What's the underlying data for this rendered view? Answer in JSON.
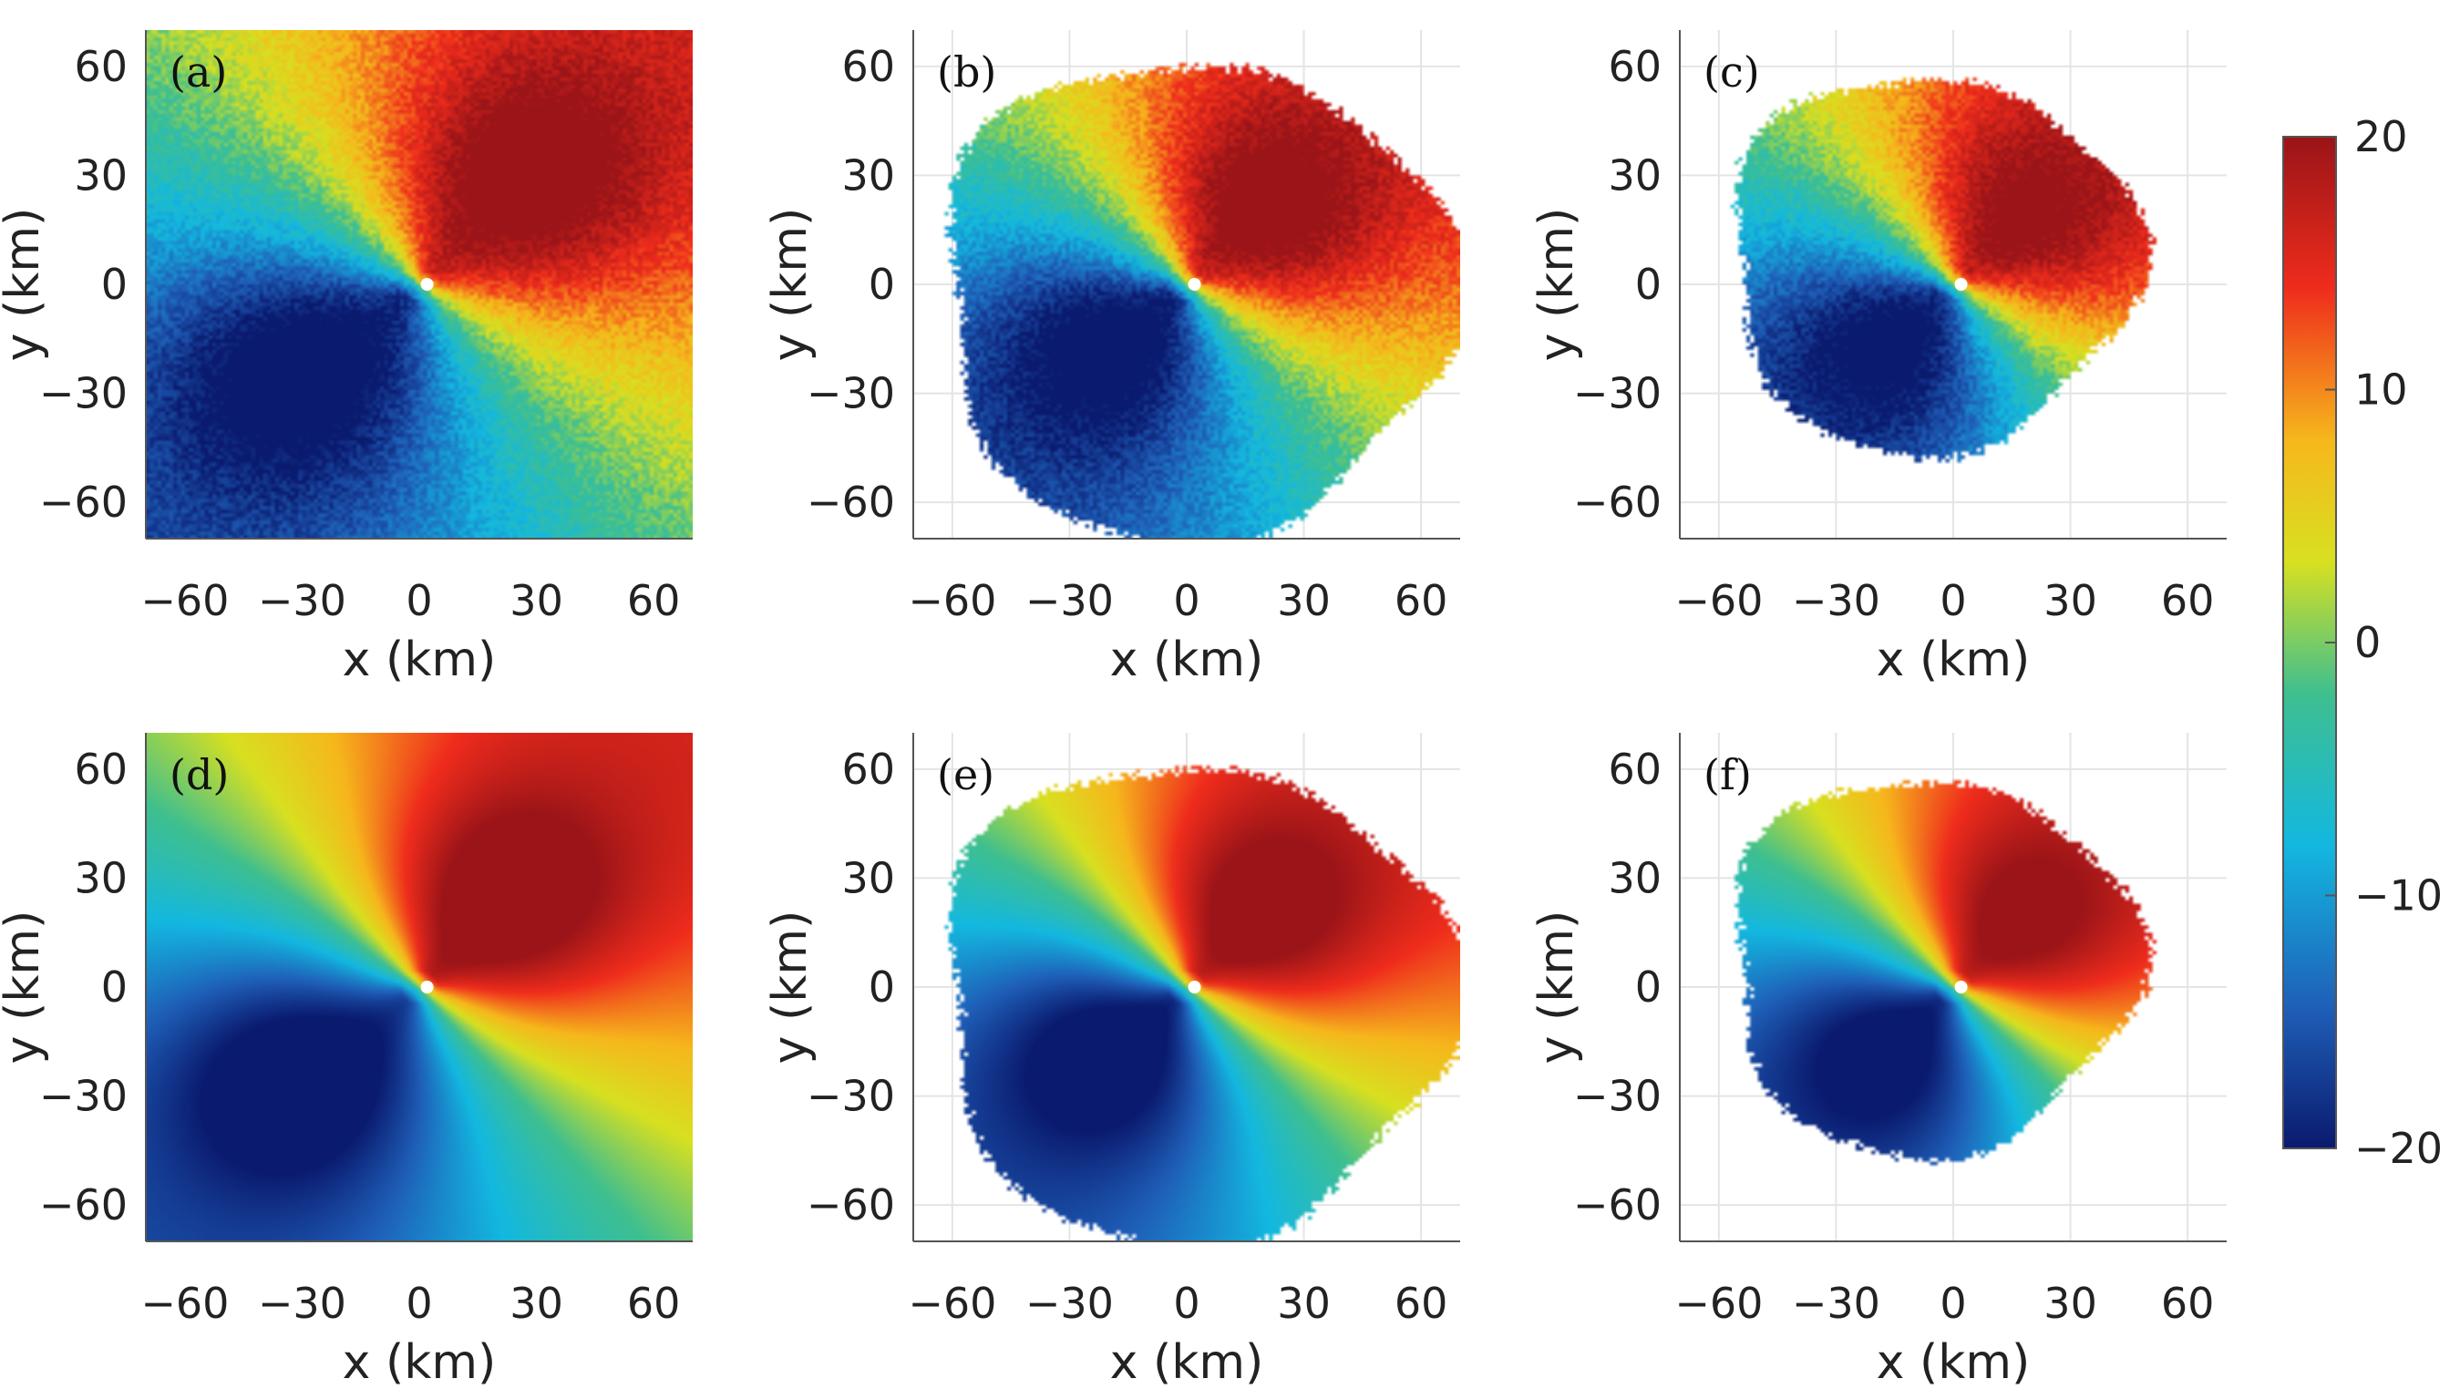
{
  "chart_data": {
    "type": "heatmap",
    "colorbar": {
      "min": -20,
      "max": 20,
      "ticks": [
        "20",
        "10",
        "0",
        "−10",
        "−20"
      ],
      "tick_values": [
        20,
        10,
        0,
        -10,
        -20
      ],
      "colormap": [
        "#0a1a6e",
        "#1f5fb8",
        "#13b8e0",
        "#3fbf8f",
        "#d8e020",
        "#f6b71c",
        "#ef2c1c",
        "#9a1418"
      ]
    },
    "panels": [
      {
        "label": "(a)",
        "mask": "square",
        "xlabel": "x (km)",
        "ylabel": "y (km)",
        "x_ticks": [
          "−60",
          "−30",
          "0",
          "30",
          "60"
        ],
        "y_ticks": [
          "60",
          "30",
          "0",
          "−30",
          "−60"
        ],
        "xlim": [
          -70,
          70
        ],
        "ylim": [
          -70,
          70
        ],
        "noisy": true,
        "pos_center": [
          28,
          30
        ],
        "neg_center": [
          -32,
          -22
        ],
        "peak": 20
      },
      {
        "label": "(b)",
        "mask": "disk",
        "xlabel": "x (km)",
        "ylabel": "y (km)",
        "x_ticks": [
          "−60",
          "−30",
          "0",
          "30",
          "60"
        ],
        "y_ticks": [
          "60",
          "30",
          "0",
          "−30",
          "−60"
        ],
        "xlim": [
          -70,
          70
        ],
        "ylim": [
          -70,
          70
        ],
        "noisy": true,
        "pos_center": [
          18,
          18
        ],
        "neg_center": [
          -18,
          -12
        ],
        "peak": 20
      },
      {
        "label": "(c)",
        "mask": "small-disk",
        "xlabel": "x (km)",
        "ylabel": "y (km)",
        "x_ticks": [
          "−60",
          "−30",
          "0",
          "30",
          "60"
        ],
        "y_ticks": [
          "60",
          "30",
          "0",
          "−30",
          "−60"
        ],
        "xlim": [
          -70,
          70
        ],
        "ylim": [
          -70,
          70
        ],
        "noisy": true,
        "pos_center": [
          14,
          14
        ],
        "neg_center": [
          -12,
          -10
        ],
        "peak": 20
      },
      {
        "label": "(d)",
        "mask": "square",
        "xlabel": "x (km)",
        "ylabel": "y (km)",
        "x_ticks": [
          "−60",
          "−30",
          "0",
          "30",
          "60"
        ],
        "y_ticks": [
          "60",
          "30",
          "0",
          "−30",
          "−60"
        ],
        "xlim": [
          -70,
          70
        ],
        "ylim": [
          -70,
          70
        ],
        "noisy": false,
        "pos_center": [
          22,
          24
        ],
        "neg_center": [
          -32,
          -24
        ],
        "peak": 20
      },
      {
        "label": "(e)",
        "mask": "disk",
        "xlabel": "x (km)",
        "ylabel": "y (km)",
        "x_ticks": [
          "−60",
          "−30",
          "0",
          "30",
          "60"
        ],
        "y_ticks": [
          "60",
          "30",
          "0",
          "−30",
          "−60"
        ],
        "xlim": [
          -70,
          70
        ],
        "ylim": [
          -70,
          70
        ],
        "noisy": false,
        "pos_center": [
          16,
          18
        ],
        "neg_center": [
          -18,
          -14
        ],
        "peak": 20
      },
      {
        "label": "(f)",
        "mask": "small-disk",
        "xlabel": "x (km)",
        "ylabel": "y (km)",
        "x_ticks": [
          "−60",
          "−30",
          "0",
          "30",
          "60"
        ],
        "y_ticks": [
          "60",
          "30",
          "0",
          "−30",
          "−60"
        ],
        "xlim": [
          -70,
          70
        ],
        "ylim": [
          -70,
          70
        ],
        "noisy": false,
        "pos_center": [
          12,
          14
        ],
        "neg_center": [
          -12,
          -12
        ],
        "peak": 20
      }
    ]
  }
}
